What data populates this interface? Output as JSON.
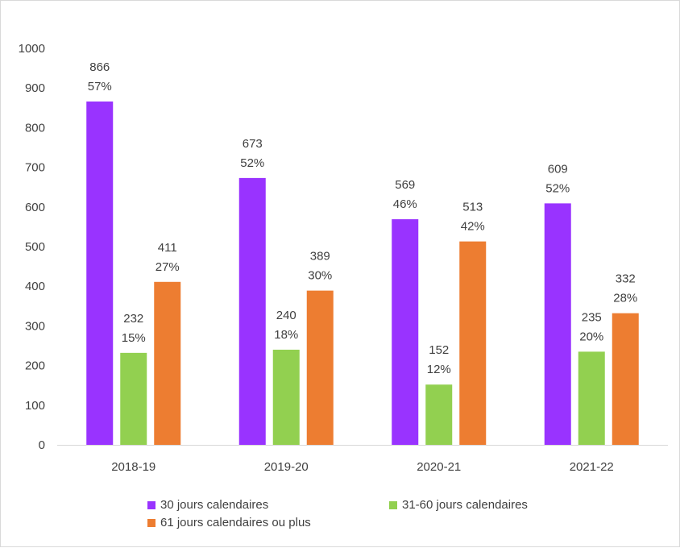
{
  "chart_data": {
    "type": "bar",
    "title": "",
    "xlabel": "",
    "ylabel": "",
    "ylim": [
      0,
      1000
    ],
    "yticks": [
      0,
      100,
      200,
      300,
      400,
      500,
      600,
      700,
      800,
      900,
      1000
    ],
    "grid": false,
    "legend_position": "bottom",
    "categories": [
      "2018-19",
      "2019-20",
      "2020-21",
      "2021-22"
    ],
    "series": [
      {
        "name": "30 jours calendaires",
        "color": "#9933ff",
        "values": [
          866,
          673,
          569,
          609
        ],
        "percent_labels": [
          "57%",
          "52%",
          "46%",
          "52%"
        ]
      },
      {
        "name": "31-60 jours calendaires",
        "color": "#92d050",
        "values": [
          232,
          240,
          152,
          235
        ],
        "percent_labels": [
          "15%",
          "18%",
          "12%",
          "20%"
        ]
      },
      {
        "name": "61 jours calendaires ou plus",
        "color": "#ed7d31",
        "values": [
          411,
          389,
          513,
          332
        ],
        "percent_labels": [
          "27%",
          "30%",
          "42%",
          "28%"
        ]
      }
    ]
  }
}
